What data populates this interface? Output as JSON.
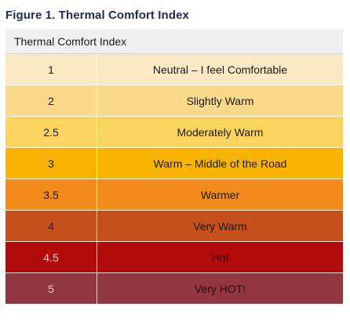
{
  "figure": {
    "title": "Figure 1. Thermal Comfort Index"
  },
  "table": {
    "header": "Thermal Comfort Index",
    "rows": [
      {
        "index": "1",
        "label": "Neutral – I feel Comfortable",
        "color": "#fbe9c3"
      },
      {
        "index": "2",
        "label": "Slightly Warm",
        "color": "#fbd98a"
      },
      {
        "index": "2.5",
        "label": "Moderately Warm",
        "color": "#fbd45f"
      },
      {
        "index": "3",
        "label": "Warm – Middle of the Road",
        "color": "#f8b400"
      },
      {
        "index": "3.5",
        "label": "Warmer",
        "color": "#f38a1a"
      },
      {
        "index": "4",
        "label": "Very Warm",
        "color": "#c5501b"
      },
      {
        "index": "4.5",
        "label": "Hot",
        "color": "#b10b0b"
      },
      {
        "index": "5",
        "label": "Very HOT!",
        "color": "#903742"
      }
    ]
  }
}
